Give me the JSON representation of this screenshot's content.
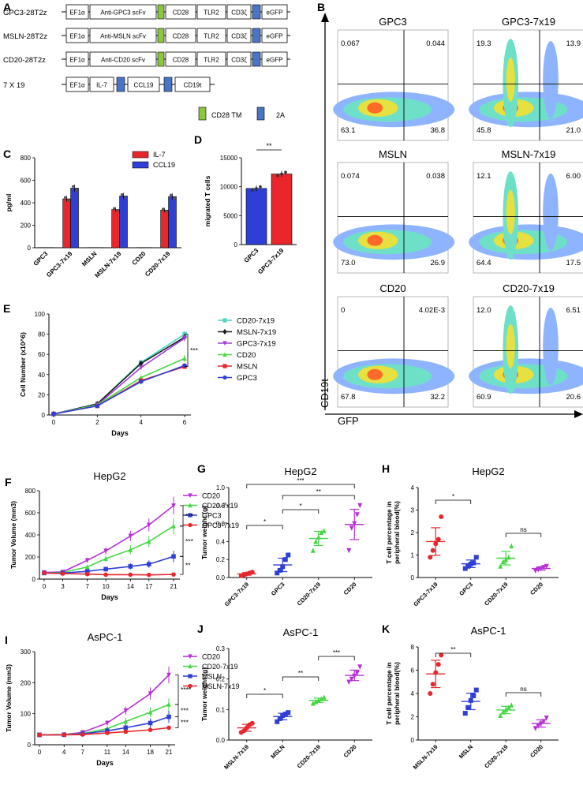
{
  "panel_labels": {
    "A": "A",
    "B": "B",
    "C": "C",
    "D": "D",
    "E": "E",
    "F": "F",
    "G": "G",
    "H": "H",
    "I": "I",
    "J": "J",
    "K": "K"
  },
  "colors": {
    "construct_green": "#8dc63f",
    "construct_blue": "#4a74c4",
    "red": "#e8262c",
    "blue": "#2f3fd6",
    "magenta": "#b72fd6",
    "green": "#46d646",
    "black": "#1a1a1a",
    "cyan": "#4fd6c3",
    "purple": "#a03fd6"
  },
  "constructs": {
    "rows": [
      {
        "name": "GPC3-28T2z",
        "boxes": [
          "EF1α",
          "Anti-GPC3 scFv",
          "CD28",
          "TLR2",
          "CD3ζ",
          "eGFP"
        ]
      },
      {
        "name": "MSLN-28T2z",
        "boxes": [
          "EF1α",
          "Anti-MSLN scFv",
          "CD28",
          "TLR2",
          "CD3ζ",
          "eGFP"
        ]
      },
      {
        "name": "CD20-28T2z",
        "boxes": [
          "EF1α",
          "Anti-CD20 scFv",
          "CD28",
          "TLR2",
          "CD3ζ",
          "eGFP"
        ]
      },
      {
        "name": "7 X 19",
        "boxes": [
          "EF1α",
          "IL-7",
          "CCL19",
          "CD19t"
        ]
      }
    ],
    "legend": {
      "tm": "CD28 TM",
      "a2": "2A"
    }
  },
  "flow": {
    "plots": [
      {
        "title": "GPC3",
        "ul": "0.067",
        "ur": "0.044",
        "ll": "63.1",
        "lr": "36.8"
      },
      {
        "title": "GPC3-7x19",
        "ul": "19.3",
        "ur": "13.9",
        "ll": "45.8",
        "lr": "21.0"
      },
      {
        "title": "MSLN",
        "ul": "0.074",
        "ur": "0.038",
        "ll": "73.0",
        "lr": "26.9"
      },
      {
        "title": "MSLN-7x19",
        "ul": "12.1",
        "ur": "6.00",
        "ll": "64.4",
        "lr": "17.5"
      },
      {
        "title": "CD20",
        "ul": "0",
        "ur": "4.02E-3",
        "ll": "67.8",
        "lr": "32.2"
      },
      {
        "title": "CD20-7x19",
        "ul": "12.0",
        "ur": "6.51",
        "ll": "60.9",
        "lr": "20.6"
      }
    ],
    "ylabel": "CD19t",
    "xlabel": "GFP"
  },
  "chart_data": [
    {
      "id": "C",
      "type": "bar",
      "ylabel": "pg/ml",
      "ylim": [
        0,
        800
      ],
      "yticks": [
        "0",
        "200",
        "400",
        "600",
        "800"
      ],
      "categories": [
        "GPC3",
        "GPC3-7x19",
        "MSLN",
        "MSLN-7x19",
        "CD20",
        "CD20-7x19"
      ],
      "series": [
        {
          "name": "IL-7",
          "values": [
            2,
            435,
            2,
            340,
            2,
            335
          ]
        },
        {
          "name": "CCL19",
          "values": [
            2,
            530,
            2,
            460,
            2,
            455
          ]
        }
      ]
    },
    {
      "id": "D",
      "type": "bar",
      "ylabel": "migrated T cells",
      "ylim": [
        0,
        15000
      ],
      "yticks": [
        "0",
        "5000",
        "10000",
        "15000"
      ],
      "categories": [
        "GPC3",
        "GPC3-7x19"
      ],
      "values": [
        9700,
        12200
      ],
      "significance": "**"
    },
    {
      "id": "E",
      "type": "line",
      "xlabel": "Days",
      "ylabel": "Cell Number (x10^6)",
      "ylim": [
        0,
        100
      ],
      "x": [
        0,
        2,
        4,
        6
      ],
      "xticks": [
        "0",
        "2",
        "4",
        "6"
      ],
      "yticks": [
        "0",
        "20",
        "40",
        "60",
        "80",
        "100"
      ],
      "significance": "***",
      "series": [
        {
          "name": "CD20-7x19",
          "values": [
            1,
            11,
            52,
            80
          ]
        },
        {
          "name": "MSLN-7x19",
          "values": [
            1,
            11,
            51,
            77
          ]
        },
        {
          "name": "GPC3-7x19",
          "values": [
            1,
            10,
            47,
            76
          ]
        },
        {
          "name": "CD20",
          "values": [
            1,
            10,
            37,
            56
          ]
        },
        {
          "name": "MSLN",
          "values": [
            1,
            9,
            34,
            48
          ]
        },
        {
          "name": "GPC3",
          "values": [
            1,
            9,
            33,
            49
          ]
        }
      ]
    },
    {
      "id": "F",
      "type": "line",
      "title": "HepG2",
      "xlabel": "Days",
      "ylabel": "Tumor Volume (mm3)",
      "ylim": [
        0,
        800
      ],
      "x": [
        0,
        3,
        7,
        10,
        14,
        17,
        21
      ],
      "xticks": [
        "0",
        "3",
        "7",
        "10",
        "14",
        "17",
        "21"
      ],
      "yticks": [
        "0",
        "200",
        "400",
        "600",
        "800"
      ],
      "significance": [
        "***",
        "***",
        "**"
      ],
      "series": [
        {
          "name": "CD20",
          "values": [
            60,
            65,
            170,
            255,
            390,
            490,
            665
          ]
        },
        {
          "name": "CD20-7x19",
          "values": [
            55,
            60,
            110,
            185,
            265,
            340,
            480
          ]
        },
        {
          "name": "GPC3",
          "values": [
            55,
            55,
            70,
            90,
            115,
            135,
            205
          ]
        },
        {
          "name": "GPC3-7x19",
          "values": [
            55,
            50,
            45,
            40,
            40,
            38,
            42
          ]
        }
      ]
    },
    {
      "id": "G",
      "type": "scatter",
      "title": "HepG2",
      "ylabel": "Tumor weight (g)",
      "ylim": [
        0,
        1.0
      ],
      "yticks": [
        "0.0",
        "0.2",
        "0.4",
        "0.6",
        "0.8",
        "1.0"
      ],
      "categories": [
        "GPC3-7x19",
        "GPC3",
        "CD20-7x19",
        "CD20"
      ],
      "groups": [
        [
          0.02,
          0.03,
          0.04,
          0.05,
          0.06
        ],
        [
          0.05,
          0.08,
          0.12,
          0.2,
          0.25
        ],
        [
          0.3,
          0.4,
          0.45,
          0.5,
          0.52
        ],
        [
          0.3,
          0.55,
          0.6,
          0.7,
          0.8
        ]
      ],
      "significance": [
        "*",
        "*",
        "**",
        "***"
      ]
    },
    {
      "id": "H",
      "type": "scatter",
      "title": "HepG2",
      "ylabel": "T cell percentage in peripheral blood(%)",
      "ylim": [
        0,
        4
      ],
      "yticks": [
        "0",
        "1",
        "2",
        "3",
        "4"
      ],
      "categories": [
        "GPC3-7x19",
        "GPC3",
        "CD20-7x19",
        "CD20"
      ],
      "groups": [
        [
          0.9,
          1.2,
          1.5,
          1.7,
          2.7
        ],
        [
          0.4,
          0.5,
          0.6,
          0.65,
          0.9
        ],
        [
          0.5,
          0.7,
          0.8,
          0.9,
          1.4
        ],
        [
          0.3,
          0.35,
          0.4,
          0.45,
          0.5
        ]
      ],
      "significance": [
        "*",
        "ns"
      ]
    },
    {
      "id": "I",
      "type": "line",
      "title": "AsPC-1",
      "xlabel": "Days",
      "ylabel": "Tumor Volume (mm3)",
      "ylim": [
        0,
        300
      ],
      "x": [
        0,
        4,
        7,
        11,
        14,
        18,
        21
      ],
      "xticks": [
        "0",
        "4",
        "7",
        "11",
        "14",
        "18",
        "21"
      ],
      "yticks": [
        "0",
        "100",
        "200",
        "300"
      ],
      "significance": [
        "****",
        "***",
        "***"
      ],
      "series": [
        {
          "name": "CD20",
          "values": [
            32,
            33,
            40,
            70,
            110,
            165,
            225
          ]
        },
        {
          "name": "CD20-7x19",
          "values": [
            32,
            33,
            36,
            52,
            75,
            105,
            130
          ]
        },
        {
          "name": "MSLN",
          "values": [
            32,
            32,
            35,
            45,
            55,
            70,
            90
          ]
        },
        {
          "name": "MSLN-7x19",
          "values": [
            32,
            32,
            33,
            38,
            42,
            48,
            55
          ]
        }
      ]
    },
    {
      "id": "J",
      "type": "scatter",
      "title": "AsPC-1",
      "ylabel": "Tumor weight (g)",
      "ylim": [
        0,
        0.3
      ],
      "yticks": [
        "0.0",
        "0.1",
        "0.2",
        "0.3"
      ],
      "categories": [
        "MSLN-7x19",
        "MSLN",
        "CD20-7x19",
        "CD20"
      ],
      "groups": [
        [
          0.025,
          0.03,
          0.04,
          0.05,
          0.055
        ],
        [
          0.06,
          0.07,
          0.08,
          0.085,
          0.09
        ],
        [
          0.12,
          0.125,
          0.13,
          0.135,
          0.14
        ],
        [
          0.19,
          0.2,
          0.21,
          0.22,
          0.24
        ]
      ],
      "significance": [
        "*",
        "**",
        "***"
      ]
    },
    {
      "id": "K",
      "type": "scatter",
      "title": "AsPC-1",
      "ylabel": "T cell percentage in peripheral blood(%)",
      "ylim": [
        0,
        8
      ],
      "yticks": [
        "0",
        "2",
        "4",
        "6",
        "8"
      ],
      "categories": [
        "MSLN-7x19",
        "MSLN",
        "CD20-7x19",
        "CD20"
      ],
      "groups": [
        [
          4.0,
          4.8,
          5.8,
          6.5,
          7.3
        ],
        [
          2.3,
          2.8,
          3.4,
          3.8,
          4.3
        ],
        [
          2.1,
          2.4,
          2.6,
          2.8,
          3.0
        ],
        [
          1.0,
          1.2,
          1.4,
          1.6,
          1.9
        ]
      ],
      "significance": [
        "**",
        "ns"
      ]
    }
  ]
}
